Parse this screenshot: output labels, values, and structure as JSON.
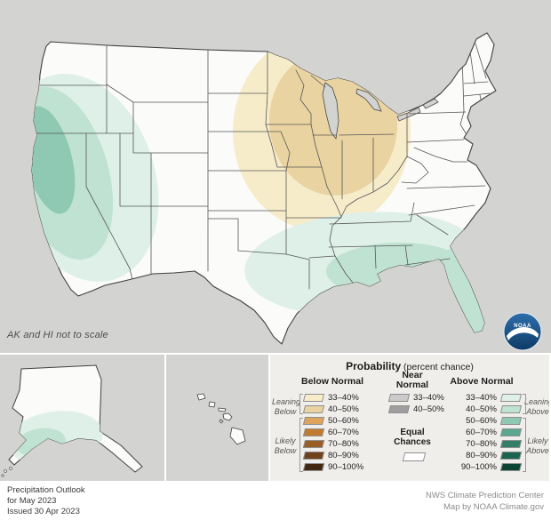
{
  "map": {
    "note": "AK and HI not to scale",
    "regions": [
      {
        "area": "West (California, Nevada, western Utah)",
        "outlook": "Above Normal",
        "peak_probability": "50–60%"
      },
      {
        "area": "Upper Midwest (Minnesota, Wisconsin, Michigan, Iowa, Illinois, Indiana, Missouri, Ohio, Kentucky)",
        "outlook": "Below Normal",
        "peak_probability": "40–50%"
      },
      {
        "area": "Gulf Coast and Southeast (central Texas through Louisiana, Mississippi, Alabama, Georgia, Florida)",
        "outlook": "Above Normal",
        "peak_probability": "40–50%"
      },
      {
        "area": "Southern Alaska",
        "outlook": "Above Normal",
        "peak_probability": "40–50%"
      },
      {
        "area": "Remainder of contiguous U.S.",
        "outlook": "Equal Chances",
        "peak_probability": ""
      }
    ]
  },
  "colors": {
    "background": "#d3d3d1",
    "land": "#fbfbf9",
    "below": [
      "#f7ecca",
      "#e9d3a1",
      "#dca45c",
      "#c07b31",
      "#995d26",
      "#6f421c",
      "#422811"
    ],
    "above": [
      "#def0e8",
      "#bfe2d2",
      "#8fc9b3",
      "#5ca78f",
      "#347f68",
      "#1c6350",
      "#0b4334"
    ],
    "near": [
      "#cbcbcb",
      "#9f9f9f"
    ],
    "equal": "#ffffff"
  },
  "legend": {
    "title": "Probability",
    "title_suffix": " (percent chance)",
    "below_header": "Below Normal",
    "near_header": "Near\nNormal",
    "above_header": "Above Normal",
    "row_labels": [
      "33–40%",
      "40–50%",
      "50–60%",
      "60–70%",
      "70–80%",
      "80–90%",
      "90–100%"
    ],
    "near_row_labels": [
      "33–40%",
      "40–50%"
    ],
    "equal_label": "Equal\nChances",
    "side_labels": {
      "leaning_below": "Leaning\nBelow",
      "likely_below": "Likely\nBelow",
      "leaning_above": "Leaning\nAbove",
      "likely_above": "Likely\nAbove"
    }
  },
  "footer": {
    "line1": "Precipitation Outlook",
    "line2": "for May 2023",
    "line3": "Issued 30 Apr 2023",
    "credit1": "NWS Climate Prediction Center",
    "credit2": "Map by NOAA Climate.gov"
  },
  "logo": {
    "text": "NOAA"
  }
}
